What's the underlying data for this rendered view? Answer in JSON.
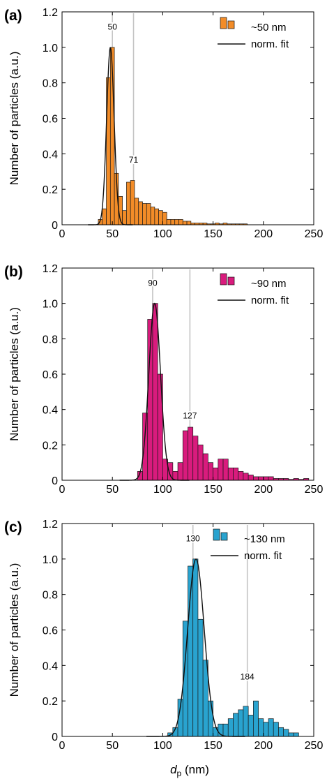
{
  "figure": {
    "xlabel_main": "d",
    "xlabel_sub": "p",
    "xlabel_unit": " (nm)"
  },
  "chart_data": [
    {
      "type": "bar",
      "panel_label": "(a)",
      "ylabel": "Number of particles (a.u.)",
      "xlim": [
        0,
        250
      ],
      "ylim": [
        0,
        1.2
      ],
      "xticks": [
        0,
        50,
        100,
        150,
        200,
        250
      ],
      "yticks": [
        0,
        0.2,
        0.4,
        0.6,
        0.8,
        1.0,
        1.2
      ],
      "ytick_labels": [
        "0",
        "0.2",
        "0.4",
        "0.6",
        "0.8",
        "1.0",
        "1.2"
      ],
      "color": "#F28C28",
      "bin_width": 4,
      "bin_starts": [
        36,
        40,
        44,
        48,
        52,
        56,
        60,
        64,
        68,
        72,
        76,
        80,
        84,
        88,
        92,
        96,
        100,
        104,
        108,
        112,
        116,
        120,
        124,
        128,
        132,
        136,
        140,
        144,
        148,
        152,
        156,
        160,
        164,
        168,
        172,
        176,
        180
      ],
      "values": [
        0.03,
        0.09,
        0.83,
        1.0,
        0.29,
        0.16,
        0.08,
        0.24,
        0.25,
        0.15,
        0.13,
        0.12,
        0.12,
        0.1,
        0.09,
        0.08,
        0.07,
        0.03,
        0.03,
        0.03,
        0.03,
        0.02,
        0.02,
        0.01,
        0.01,
        0.01,
        0.01,
        0.005,
        0.005,
        0.01,
        0.005,
        0.01,
        0.005,
        0.005,
        0.005,
        0.005,
        0.005
      ],
      "fit": {
        "mean": 48,
        "sigma": 3.7,
        "peak": 1.0
      },
      "ref_lines": [
        {
          "x": 50,
          "label": "50",
          "label_y": 1.1
        },
        {
          "x": 71,
          "label": "71",
          "label_y": 0.35
        }
      ],
      "legend": {
        "series_label": "~50 nm",
        "fit_label": "norm. fit"
      }
    },
    {
      "type": "bar",
      "panel_label": "(b)",
      "ylabel": "Number of particles (a.u.)",
      "xlim": [
        0,
        250
      ],
      "ylim": [
        0,
        1.2
      ],
      "xticks": [
        0,
        50,
        100,
        150,
        200,
        250
      ],
      "yticks": [
        0,
        0.2,
        0.4,
        0.6,
        0.8,
        1.0,
        1.2
      ],
      "ytick_labels": [
        "0",
        "0.2",
        "0.4",
        "0.6",
        "0.8",
        "1.0",
        "1.2"
      ],
      "color": "#D91B7D",
      "bin_width": 5,
      "bin_starts": [
        75,
        80,
        85,
        90,
        95,
        100,
        105,
        110,
        115,
        120,
        125,
        130,
        135,
        140,
        145,
        150,
        155,
        160,
        165,
        170,
        175,
        180,
        185,
        190,
        195,
        200,
        205,
        210,
        215,
        220,
        225,
        230,
        235,
        240
      ],
      "values": [
        0.05,
        0.38,
        0.91,
        1.0,
        0.6,
        0.12,
        0.1,
        0.05,
        0.1,
        0.28,
        0.3,
        0.25,
        0.2,
        0.15,
        0.1,
        0.07,
        0.12,
        0.12,
        0.07,
        0.07,
        0.05,
        0.04,
        0.03,
        0.02,
        0.02,
        0.02,
        0.02,
        0.01,
        0.01,
        0.01,
        0.005,
        0.01,
        0.005,
        0.01
      ],
      "fit": {
        "mean": 92,
        "sigma": 5.8,
        "peak": 1.0
      },
      "ref_lines": [
        {
          "x": 90,
          "label": "90",
          "label_y": 1.1
        },
        {
          "x": 127,
          "label": "127",
          "label_y": 0.35
        }
      ],
      "legend": {
        "series_label": "~90 nm",
        "fit_label": "norm. fit"
      }
    },
    {
      "type": "bar",
      "panel_label": "(c)",
      "ylabel": "Number of particles (a.u.)",
      "xlim": [
        0,
        250
      ],
      "ylim": [
        0,
        1.2
      ],
      "xticks": [
        0,
        50,
        100,
        150,
        200,
        250
      ],
      "yticks": [
        0,
        0.2,
        0.4,
        0.6,
        0.8,
        1.0,
        1.2
      ],
      "ytick_labels": [
        "0",
        "0.2",
        "0.4",
        "0.6",
        "0.8",
        "1.0",
        "1.2"
      ],
      "color": "#29A3CF",
      "bin_width": 5,
      "bin_starts": [
        105,
        110,
        115,
        120,
        125,
        130,
        135,
        140,
        145,
        150,
        155,
        160,
        165,
        170,
        175,
        180,
        185,
        190,
        195,
        200,
        205,
        210,
        215,
        220,
        225,
        230
      ],
      "values": [
        0.02,
        0.05,
        0.21,
        0.65,
        0.96,
        1.0,
        0.66,
        0.43,
        0.2,
        0.05,
        0.07,
        0.07,
        0.1,
        0.13,
        0.15,
        0.17,
        0.12,
        0.2,
        0.1,
        0.08,
        0.1,
        0.08,
        0.05,
        0.04,
        0.02,
        0.02
      ],
      "fit": {
        "mean": 133,
        "sigma": 8.2,
        "peak": 1.0
      },
      "ref_lines": [
        {
          "x": 130,
          "label": "130",
          "label_y": 1.1
        },
        {
          "x": 184,
          "label": "184",
          "label_y": 0.32
        }
      ],
      "legend": {
        "series_label": "~130 nm",
        "fit_label": "norm. fit"
      }
    }
  ]
}
